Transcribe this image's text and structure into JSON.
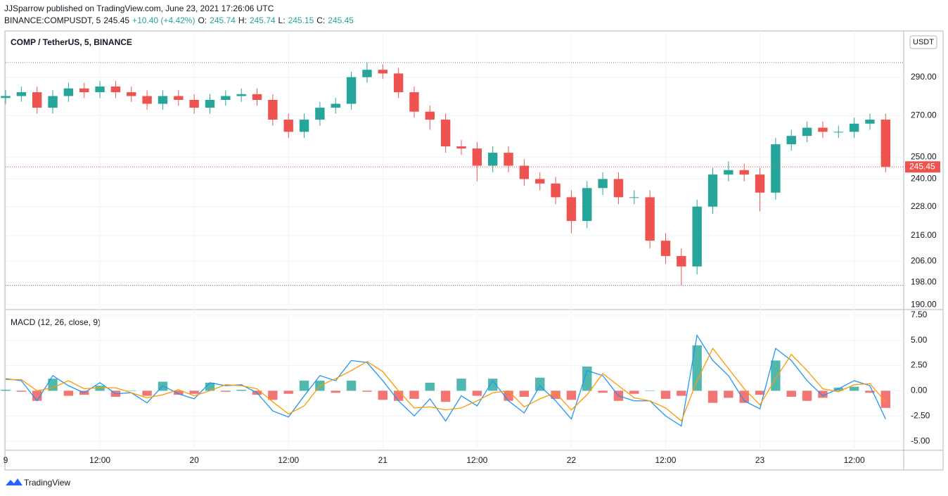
{
  "header": {
    "publisher": "JJSparrow published on TradingView.com, June 23, 2021 17:26:06 UTC",
    "symbol": "BINANCE:COMPUSDT, 5",
    "price": "245.45",
    "change": "+10.40 (+4.42%)",
    "o_label": "O:",
    "o": "245.74",
    "h_label": "H:",
    "h": "245.74",
    "l_label": "L:",
    "l": "245.15",
    "c_label": "C:",
    "c": "245.45"
  },
  "footer": {
    "brand": "TradingView"
  },
  "chart_data": {
    "type": "candlestick",
    "title": "COMP / TetherUS, 5, BINANCE",
    "currency": "USDT",
    "log_scale": true,
    "up_color": "#26a69a",
    "down_color": "#ef5350",
    "x": [
      0,
      2,
      4,
      6,
      8,
      10,
      12,
      14,
      16,
      18,
      20,
      22,
      24,
      26,
      28,
      30,
      32,
      34,
      36,
      38,
      40,
      42,
      44,
      46,
      48,
      50,
      52,
      54,
      56,
      58,
      60,
      62,
      64,
      66,
      68,
      70,
      72,
      74,
      76,
      78,
      80,
      82,
      84,
      86,
      88,
      90,
      92,
      94,
      96,
      98,
      100,
      102,
      104,
      106,
      108,
      110,
      112
    ],
    "open": [
      279,
      280,
      282,
      274,
      280,
      284,
      282,
      285,
      282,
      280,
      276,
      280,
      278,
      274,
      278,
      280,
      281,
      278,
      268,
      262,
      268,
      274,
      276,
      290,
      294,
      292,
      282,
      272,
      268,
      255,
      254,
      246,
      252,
      246,
      240,
      238,
      232,
      222,
      236,
      240,
      232,
      232,
      214,
      208,
      204,
      228,
      242,
      244,
      242,
      234,
      256,
      260,
      264,
      262,
      262,
      266,
      268
    ],
    "high": [
      283,
      285,
      285,
      283,
      287,
      287,
      288,
      288,
      285,
      283,
      283,
      283,
      281,
      281,
      283,
      284,
      284,
      281,
      271,
      271,
      277,
      279,
      293,
      298,
      297,
      295,
      285,
      275,
      271,
      258,
      257,
      255,
      255,
      249,
      243,
      241,
      235,
      239,
      243,
      243,
      235,
      235,
      217,
      211,
      231,
      245,
      248,
      247,
      245,
      259,
      263,
      267,
      267,
      265,
      269,
      271,
      271
    ],
    "low": [
      276,
      277,
      271,
      271,
      277,
      279,
      279,
      279,
      277,
      273,
      273,
      275,
      271,
      271,
      275,
      277,
      275,
      265,
      259,
      259,
      265,
      271,
      273,
      287,
      289,
      279,
      269,
      263,
      252,
      251,
      239,
      243,
      243,
      237,
      235,
      229,
      217,
      219,
      233,
      229,
      229,
      211,
      205,
      197,
      201,
      225,
      239,
      239,
      226,
      231,
      253,
      257,
      259,
      259,
      259,
      263,
      243
    ],
    "close": [
      280,
      282,
      274,
      280,
      284,
      282,
      285,
      282,
      280,
      276,
      280,
      278,
      274,
      278,
      280,
      281,
      278,
      268,
      262,
      268,
      274,
      276,
      290,
      294,
      292,
      282,
      272,
      268,
      255,
      254,
      246,
      252,
      246,
      240,
      238,
      232,
      222,
      236,
      240,
      232,
      232,
      214,
      208,
      204,
      228,
      242,
      244,
      242,
      234,
      256,
      260,
      264,
      262,
      262,
      266,
      268,
      245.45
    ],
    "last_price": 245.45,
    "xlim": [
      0,
      114.3
    ],
    "xticks": [
      {
        "value": 0,
        "label": "9"
      },
      {
        "value": 12,
        "label": "12:00"
      },
      {
        "value": 24,
        "label": "20"
      },
      {
        "value": 36,
        "label": "12:00"
      },
      {
        "value": 48,
        "label": "21"
      },
      {
        "value": 60,
        "label": "12:00"
      },
      {
        "value": 72,
        "label": "22"
      },
      {
        "value": 84,
        "label": "12:00"
      },
      {
        "value": 96,
        "label": "23"
      },
      {
        "value": 108,
        "label": "12:00"
      }
    ],
    "ylim": [
      188.3,
      316
    ],
    "yticks": [
      {
        "value": 190,
        "label": "190.00"
      },
      {
        "value": 198,
        "label": "198.00"
      },
      {
        "value": 206,
        "label": "206.00"
      },
      {
        "value": 216,
        "label": "216.00"
      },
      {
        "value": 228,
        "label": "228.00"
      },
      {
        "value": 240,
        "label": "240.00"
      },
      {
        "value": 250,
        "label": "250.00"
      },
      {
        "value": 270,
        "label": "270.00"
      },
      {
        "value": 290,
        "label": "290.00"
      }
    ],
    "indicator": {
      "type": "macd",
      "title": "MACD (12, 26, close, 9)",
      "ylim": [
        -5.9,
        8.05
      ],
      "yticks": [
        {
          "value": -5,
          "label": "-5.00"
        },
        {
          "value": -2.5,
          "label": "-2.50"
        },
        {
          "value": 0,
          "label": "0.00"
        },
        {
          "value": 2.5,
          "label": "2.50"
        },
        {
          "value": 5,
          "label": "5.00"
        },
        {
          "value": 7.5,
          "label": "7.50"
        }
      ],
      "macd": {
        "color": "#2196f3",
        "values": [
          1.2,
          1.0,
          -1.0,
          1.5,
          0.5,
          -0.2,
          0.8,
          -0.3,
          -0.2,
          -1.2,
          0.5,
          -0.3,
          -0.8,
          0.8,
          0.5,
          0.6,
          -0.2,
          -2.0,
          -2.6,
          -0.5,
          1.5,
          1.0,
          3.0,
          2.8,
          1.0,
          -1.0,
          -2.5,
          -0.8,
          -3.0,
          -0.5,
          -1.5,
          1.0,
          -1.0,
          -2.2,
          0.5,
          -1.0,
          -2.8,
          2.0,
          1.5,
          -0.5,
          -1.0,
          -1.0,
          -2.5,
          -3.5,
          5.5,
          3.0,
          1.5,
          -1.0,
          -1.8,
          4.2,
          3.0,
          1.0,
          -0.5,
          0.2,
          1.0,
          0.5,
          -2.8
        ]
      },
      "signal": {
        "color": "#ff9800",
        "values": [
          1.1,
          1.1,
          0.0,
          0.3,
          1.0,
          0.2,
          0.3,
          0.3,
          -0.2,
          -0.7,
          -0.4,
          0.1,
          -0.5,
          0.0,
          0.6,
          0.5,
          0.2,
          -1.1,
          -2.3,
          -1.5,
          0.5,
          1.2,
          2.0,
          2.9,
          1.9,
          0.0,
          -1.7,
          -1.6,
          -1.9,
          -1.7,
          -1.0,
          -0.2,
          0.0,
          -1.6,
          -0.8,
          -0.2,
          -1.9,
          -0.4,
          1.7,
          0.5,
          -0.7,
          -1.0,
          -1.7,
          -3.0,
          1.0,
          4.2,
          2.2,
          0.2,
          -1.4,
          1.2,
          3.6,
          2.0,
          0.2,
          -0.1,
          0.6,
          0.7,
          -1.1
        ]
      },
      "histogram": {
        "up_color": "#26a69a",
        "down_color": "#ef5350",
        "values": [
          0.1,
          -0.1,
          -1.0,
          1.2,
          -0.5,
          -0.4,
          0.5,
          -0.6,
          0.0,
          -0.5,
          0.9,
          -0.4,
          -0.3,
          0.8,
          -0.1,
          0.1,
          -0.4,
          -0.9,
          -0.3,
          1.0,
          1.0,
          -0.2,
          1.0,
          -0.1,
          -0.9,
          -1.0,
          -0.8,
          0.8,
          -1.1,
          1.2,
          -0.5,
          1.2,
          -1.0,
          -0.6,
          1.3,
          -0.8,
          -0.9,
          2.4,
          -0.2,
          -1.0,
          -0.3,
          0.0,
          -0.8,
          -0.5,
          4.5,
          -1.2,
          -0.7,
          -1.2,
          -0.4,
          3.0,
          -0.6,
          -1.0,
          -0.7,
          0.3,
          0.4,
          -0.2,
          -1.7
        ]
      }
    }
  }
}
